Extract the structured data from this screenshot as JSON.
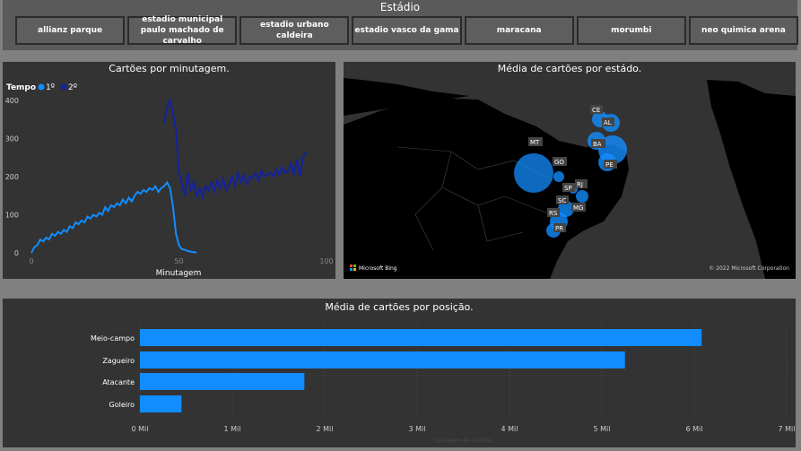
{
  "slicer": {
    "title": "Estádio",
    "buttons": [
      {
        "label": "allianz parque"
      },
      {
        "label": "estadio municipal paulo machado de carvalho"
      },
      {
        "label": "estadio urbano caldeira"
      },
      {
        "label": "estadio vasco da gama"
      },
      {
        "label": "maracana"
      },
      {
        "label": "morumbi"
      },
      {
        "label": "neo quimica arena"
      }
    ]
  },
  "line_panel": {
    "title": "Cartões por minutagem.",
    "legend_title": "Tempo",
    "legend_items": [
      "1º",
      "2º"
    ],
    "xlabel": "Minutagem"
  },
  "map_panel": {
    "title": "Média de cartões por estádo.",
    "bing_label": "Microsoft Bing",
    "copyright": "© 2022 Microsoft Corporation",
    "states": [
      "CE",
      "AL",
      "BA",
      "PE",
      "MT",
      "GO",
      "SP",
      "RJ",
      "SC",
      "MG",
      "RS",
      "PR"
    ]
  },
  "bar_panel": {
    "title": "Média de cartões por posição.",
    "xlabel": "Contagem de cartões"
  },
  "colors": {
    "first_half": "#118dff",
    "second_half": "#12239e",
    "panel_bg": "#333333",
    "page_bg": "#808080"
  },
  "chart_data": [
    {
      "type": "line",
      "title": "Cartões por minutagem.",
      "xlabel": "Minutagem",
      "ylabel": "",
      "xlim": [
        0,
        100
      ],
      "ylim": [
        0,
        400
      ],
      "xticks": [
        0,
        50,
        100
      ],
      "yticks": [
        0,
        100,
        200,
        300,
        400
      ],
      "series": [
        {
          "name": "1º",
          "x": [
            0,
            1,
            2,
            3,
            4,
            5,
            6,
            7,
            8,
            9,
            10,
            11,
            12,
            13,
            14,
            15,
            16,
            17,
            18,
            19,
            20,
            21,
            22,
            23,
            24,
            25,
            26,
            27,
            28,
            29,
            30,
            31,
            32,
            33,
            34,
            35,
            36,
            37,
            38,
            39,
            40,
            41,
            42,
            43,
            44,
            45,
            46,
            47,
            48,
            49,
            50,
            51,
            52,
            53,
            54,
            55,
            56
          ],
          "y": [
            0,
            15,
            20,
            35,
            30,
            40,
            35,
            50,
            45,
            55,
            50,
            60,
            55,
            70,
            65,
            80,
            75,
            85,
            80,
            95,
            90,
            100,
            95,
            105,
            100,
            120,
            110,
            125,
            120,
            130,
            125,
            140,
            130,
            145,
            135,
            150,
            160,
            155,
            165,
            160,
            170,
            165,
            175,
            160,
            170,
            175,
            185,
            170,
            120,
            50,
            20,
            10,
            8,
            5,
            3,
            2,
            1
          ]
        },
        {
          "name": "2º",
          "x": [
            45,
            46,
            47,
            48,
            49,
            50,
            51,
            52,
            53,
            54,
            55,
            56,
            57,
            58,
            59,
            60,
            61,
            62,
            63,
            64,
            65,
            66,
            67,
            68,
            69,
            70,
            71,
            72,
            73,
            74,
            75,
            76,
            77,
            78,
            79,
            80,
            81,
            82,
            83,
            84,
            85,
            86,
            87,
            88,
            89,
            90,
            91,
            92,
            93
          ],
          "y": [
            340,
            380,
            400,
            370,
            320,
            210,
            180,
            150,
            210,
            160,
            185,
            150,
            170,
            145,
            175,
            165,
            185,
            160,
            190,
            170,
            195,
            165,
            180,
            200,
            175,
            210,
            185,
            205,
            180,
            200,
            195,
            210,
            190,
            215,
            200,
            205,
            210,
            200,
            220,
            205,
            225,
            210,
            215,
            235,
            205,
            245,
            200,
            250,
            265
          ]
        }
      ]
    },
    {
      "type": "bar",
      "orientation": "horizontal",
      "title": "Média de cartões por posição.",
      "xlabel": "Contagem de cartões",
      "categories": [
        "Meio-campo",
        "Zagueiro",
        "Atacante",
        "Goleiro"
      ],
      "values": [
        6080,
        5250,
        1780,
        450
      ],
      "xlim": [
        0,
        7000
      ],
      "xtick_labels": [
        "0 Mil",
        "1 Mil",
        "2 Mil",
        "3 Mil",
        "4 Mil",
        "5 Mil",
        "6 Mil",
        "7 Mil"
      ]
    }
  ]
}
